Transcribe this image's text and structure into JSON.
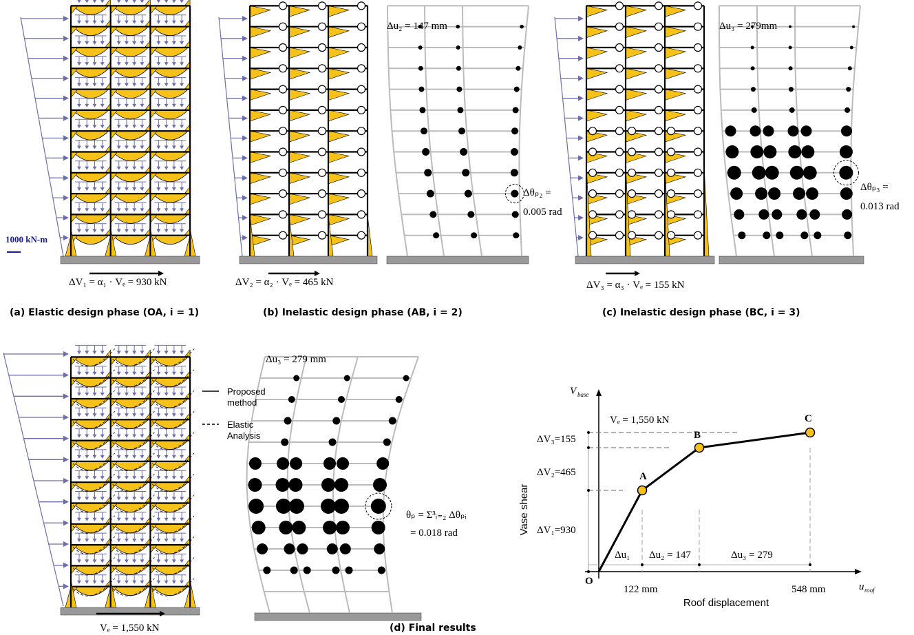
{
  "panel_a": {
    "scale_label": "1000 kN-m",
    "shear": "ΔV₁ = α₁ · Vₑ = 930 kN",
    "caption": "(a) Elastic design phase (OA, i = 1)"
  },
  "panel_b": {
    "shear": "ΔV₂ = α₂ · Vₑ = 465 kN",
    "drift": "Δu₂ = 147 mm",
    "rotation": "Δθₚ₂ =",
    "rotation_value": "0.005 rad",
    "caption": "(b) Inelastic design phase (AB, i = 2)"
  },
  "panel_c": {
    "shear": "ΔV₃ = α₃ · Vₑ = 155 kN",
    "drift": "Δu₃ = 279mm",
    "rotation": "Δθₚ₃ =",
    "rotation_value": "0.013 rad",
    "caption": "(c) Inelastic design phase (BC, i = 3)"
  },
  "panel_d": {
    "legend_proposed": [
      "Proposed",
      "method"
    ],
    "legend_elastic": [
      "Elastic",
      "Analysis"
    ],
    "shear": "Vₑ = 1,550 kN",
    "drift": "Δu₃ = 279 mm",
    "rotation": "θₚ = Σ³ᵢ₌₂ Δθₚᵢ",
    "rotation_value": "= 0.018 rad",
    "caption": "(d) Final results"
  },
  "pushover": {
    "y_symbol": "V",
    "y_symbol_sub": "base",
    "y_title": "Vase shear",
    "x_symbol": "u",
    "x_symbol_sub": "roof",
    "x_title": "Roof displacement",
    "ve_label": "Vₑ = 1,550 kN",
    "dv3": "ΔV₃=155",
    "dv2": "ΔV₂=465",
    "dv1": "ΔV₁=930",
    "point_a": "A",
    "point_b": "B",
    "point_c": "C",
    "origin": "O",
    "du1": "Δu₁",
    "du2": "Δu₂ = 147",
    "du3": "Δu₃ = 279",
    "x122": "122 mm",
    "x548": "548 mm"
  }
}
